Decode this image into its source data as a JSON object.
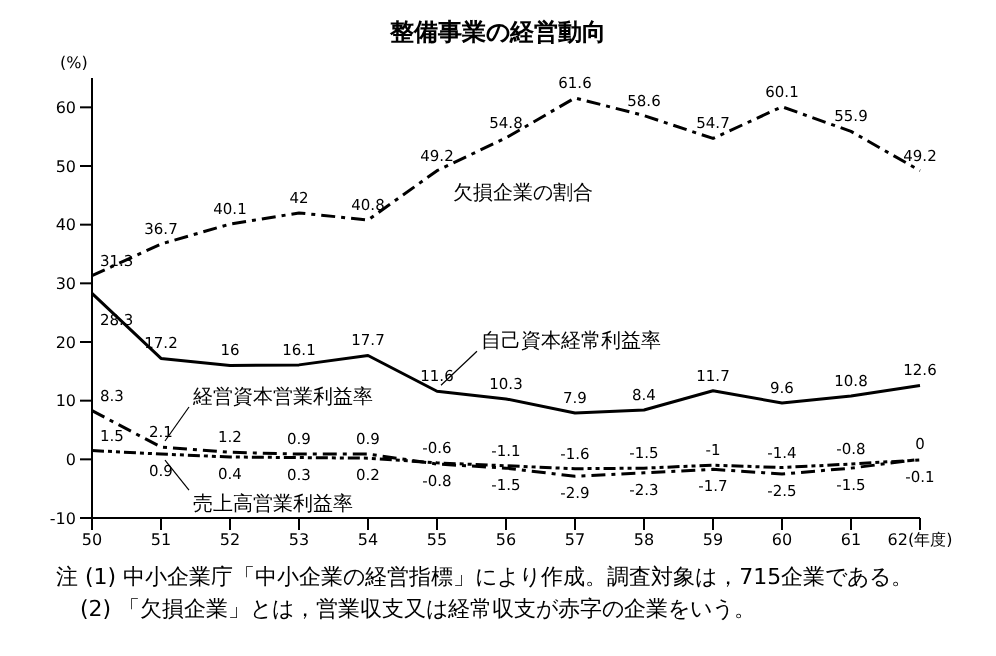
{
  "chart_data": {
    "type": "line",
    "title": "整備事業の経営動向",
    "ylabel": "(%)",
    "categories": [
      "50",
      "51",
      "52",
      "53",
      "54",
      "55",
      "56",
      "57",
      "58",
      "59",
      "60",
      "61",
      "62(年度)"
    ],
    "series": [
      {
        "name": "欠損企業の割合",
        "color": "#000000",
        "line_style": "dashed",
        "values": [
          31.3,
          36.7,
          40.1,
          42.0,
          40.8,
          49.2,
          54.8,
          61.6,
          58.6,
          54.7,
          60.1,
          55.9,
          49.2
        ]
      },
      {
        "name": "自己資本経常利益率",
        "color": "#000000",
        "line_style": "solid",
        "values": [
          28.3,
          17.2,
          16.0,
          16.1,
          17.7,
          11.6,
          10.3,
          7.9,
          8.4,
          11.7,
          9.6,
          10.8,
          12.6
        ]
      },
      {
        "name": "経営資本営業利益率",
        "color": "#000000",
        "line_style": "dashed",
        "values": [
          8.3,
          2.1,
          1.2,
          0.9,
          0.9,
          -0.8,
          -1.5,
          -2.9,
          -2.3,
          -1.7,
          -2.5,
          -1.5,
          0
        ]
      },
      {
        "name": "売上高営業利益率",
        "color": "#000000",
        "line_style": "dotted",
        "values": [
          1.5,
          0.9,
          0.4,
          0.3,
          0.2,
          -0.6,
          -1.1,
          -1.6,
          -1.5,
          -1.0,
          -1.4,
          -0.8,
          -0.1
        ]
      }
    ],
    "ylim": [
      -10,
      65
    ],
    "yticks": [
      -10,
      0,
      10,
      20,
      30,
      40,
      50,
      60
    ],
    "grid": false,
    "legend": false,
    "marker": "none",
    "data_labels": true,
    "annotations": [
      "注 (1) 中小企業庁「中小企業の経営指標」により作成。調査対象は，715企業である。",
      "(2) 「欠損企業」とは，営業収支又は経常収支が赤字の企業をいう。"
    ]
  }
}
